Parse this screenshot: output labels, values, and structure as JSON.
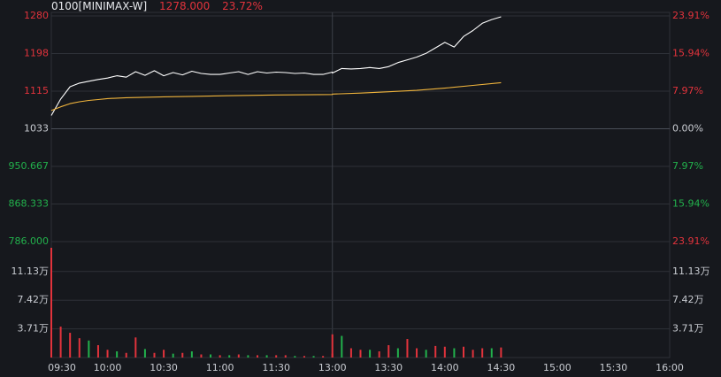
{
  "header": {
    "symbol": "0100[MINIMAX-W]",
    "price": "1278.000",
    "change_pct": "23.72%"
  },
  "colors": {
    "background": "#16181d",
    "grid": "#2e3138",
    "up": "#e2333c",
    "down": "#22b14c",
    "neutral": "#c9ccd2",
    "price_line": "#ffffff",
    "avg_line": "#f0b43c"
  },
  "chart_data": [
    {
      "type": "line",
      "title": "0100[MINIMAX-W]",
      "prev_close": 1033,
      "ylim": [
        786,
        1280
      ],
      "left_tick_labels": [
        "1280",
        "1198",
        "1115",
        "1033",
        "950.667",
        "868.333",
        "786.000"
      ],
      "right_tick_labels": [
        "23.91%",
        "15.94%",
        "7.97%",
        "0.00%",
        "7.97%",
        "15.94%",
        "23.91%"
      ],
      "x_tick_labels": [
        "09:30",
        "10:00",
        "10:30",
        "11:00",
        "11:30",
        "13:00",
        "13:30",
        "14:00",
        "14:30",
        "15:00",
        "15:30",
        "16:00"
      ],
      "series": [
        {
          "name": "price",
          "x": [
            "09:30",
            "09:35",
            "09:40",
            "09:45",
            "09:50",
            "09:55",
            "10:00",
            "10:05",
            "10:10",
            "10:15",
            "10:20",
            "10:25",
            "10:30",
            "10:35",
            "10:40",
            "10:45",
            "10:50",
            "10:55",
            "11:00",
            "11:05",
            "11:10",
            "11:15",
            "11:20",
            "11:25",
            "11:30",
            "11:35",
            "11:40",
            "11:45",
            "11:50",
            "11:55",
            "12:00",
            "13:00",
            "13:05",
            "13:10",
            "13:15",
            "13:20",
            "13:25",
            "13:30",
            "13:35",
            "13:40",
            "13:45",
            "13:50",
            "13:55",
            "14:00",
            "14:05",
            "14:10",
            "14:15",
            "14:20",
            "14:25",
            "14:30"
          ],
          "values": [
            1062,
            1098,
            1125,
            1133,
            1137,
            1141,
            1144,
            1149,
            1146,
            1158,
            1150,
            1160,
            1149,
            1156,
            1151,
            1159,
            1154,
            1152,
            1152,
            1155,
            1158,
            1152,
            1158,
            1155,
            1157,
            1156,
            1154,
            1155,
            1152,
            1152,
            1157,
            1155,
            1165,
            1164,
            1165,
            1167,
            1165,
            1169,
            1178,
            1184,
            1190,
            1198,
            1210,
            1222,
            1212,
            1235,
            1248,
            1264,
            1272,
            1278
          ]
        },
        {
          "name": "average",
          "x": [
            "09:30",
            "09:35",
            "09:40",
            "09:45",
            "09:50",
            "09:55",
            "10:00",
            "10:10",
            "10:20",
            "10:30",
            "10:45",
            "11:00",
            "11:15",
            "11:30",
            "12:00",
            "13:00",
            "13:15",
            "13:30",
            "13:45",
            "14:00",
            "14:15",
            "14:30"
          ],
          "values": [
            1073,
            1081,
            1088,
            1092,
            1095,
            1097,
            1099,
            1101,
            1102,
            1103,
            1104,
            1105,
            1106,
            1107,
            1108,
            1109,
            1111,
            1114,
            1117,
            1122,
            1128,
            1134
          ]
        }
      ]
    },
    {
      "type": "bar",
      "title": "",
      "ylim": [
        0,
        15
      ],
      "tick_labels": [
        "11.13万",
        "7.42万",
        "3.71万"
      ],
      "x": [
        "09:30",
        "09:35",
        "09:40",
        "09:45",
        "09:50",
        "09:55",
        "10:00",
        "10:05",
        "10:10",
        "10:15",
        "10:20",
        "10:25",
        "10:30",
        "10:35",
        "10:40",
        "10:45",
        "10:50",
        "10:55",
        "11:00",
        "11:05",
        "11:10",
        "11:15",
        "11:20",
        "11:25",
        "11:30",
        "11:35",
        "11:40",
        "11:45",
        "11:50",
        "11:55",
        "12:00",
        "13:00",
        "13:05",
        "13:10",
        "13:15",
        "13:20",
        "13:25",
        "13:30",
        "13:35",
        "13:40",
        "13:45",
        "13:50",
        "13:55",
        "14:00",
        "14:05",
        "14:10",
        "14:15",
        "14:20",
        "14:25",
        "14:30"
      ],
      "values": [
        14.2,
        4.0,
        3.2,
        2.5,
        2.2,
        1.6,
        1.0,
        0.8,
        0.6,
        2.6,
        1.1,
        0.6,
        1.0,
        0.5,
        0.6,
        0.8,
        0.4,
        0.4,
        0.3,
        0.3,
        0.4,
        0.3,
        0.3,
        0.3,
        0.3,
        0.3,
        0.2,
        0.2,
        0.2,
        0.2,
        0.5,
        3.0,
        2.8,
        1.2,
        1.0,
        1.0,
        0.8,
        1.6,
        1.2,
        2.4,
        1.2,
        1.0,
        1.5,
        1.4,
        1.2,
        1.4,
        1.0,
        1.2,
        1.2,
        1.3
      ],
      "directions": [
        "up",
        "up",
        "up",
        "up",
        "down",
        "up",
        "up",
        "down",
        "up",
        "up",
        "down",
        "up",
        "up",
        "down",
        "up",
        "down",
        "up",
        "down",
        "up",
        "down",
        "up",
        "down",
        "up",
        "down",
        "up",
        "up",
        "down",
        "up",
        "down",
        "up",
        "up",
        "up",
        "down",
        "up",
        "up",
        "down",
        "up",
        "up",
        "down",
        "up",
        "up",
        "down",
        "up",
        "up",
        "down",
        "up",
        "up",
        "up",
        "down",
        "up"
      ]
    }
  ]
}
